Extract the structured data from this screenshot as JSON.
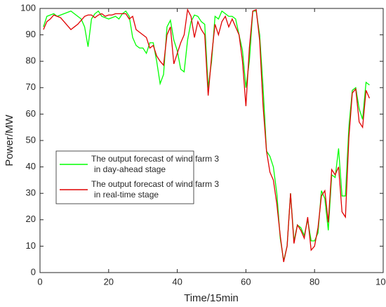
{
  "chart_data": {
    "type": "line",
    "xlabel": "Time/15min",
    "ylabel": "Power/MW",
    "x": [
      1,
      2,
      3,
      4,
      5,
      6,
      7,
      8,
      9,
      10,
      11,
      12,
      13,
      14,
      15,
      16,
      17,
      18,
      19,
      20,
      21,
      22,
      23,
      24,
      25,
      26,
      27,
      28,
      29,
      30,
      31,
      32,
      33,
      34,
      35,
      36,
      37,
      38,
      39,
      40,
      41,
      42,
      43,
      44,
      45,
      46,
      47,
      48,
      49,
      50,
      51,
      52,
      53,
      54,
      55,
      56,
      57,
      58,
      59,
      60,
      61,
      62,
      63,
      64,
      65,
      66,
      67,
      68,
      69,
      70,
      71,
      72,
      73,
      74,
      75,
      76,
      77,
      78,
      79,
      80,
      81,
      82,
      83,
      84,
      85,
      86,
      87,
      88,
      89,
      90,
      91,
      92,
      93,
      94,
      95,
      96
    ],
    "series": [
      {
        "name": "The output forecast of wind farm 3\nin day-ahead stage",
        "color": "#00ff00",
        "values": [
          93,
          97,
          97.5,
          98,
          97,
          97.5,
          98,
          98.5,
          99,
          98,
          97,
          96,
          93,
          85.5,
          96,
          98,
          99,
          97,
          96.5,
          96,
          96.5,
          97,
          96,
          98,
          99,
          97,
          89,
          86,
          85,
          85,
          83,
          87,
          87,
          80,
          71.5,
          75,
          93,
          95.5,
          88,
          84,
          77,
          76,
          88,
          95,
          97.5,
          97,
          95,
          94,
          70,
          80,
          97,
          96,
          99,
          98,
          97,
          97,
          96,
          90,
          84,
          70,
          80,
          99,
          99,
          90,
          70,
          46,
          44,
          40,
          30,
          13,
          4.5,
          10,
          30,
          12,
          18,
          17,
          14,
          20,
          12,
          12,
          15,
          31,
          28,
          16,
          37,
          36,
          47,
          29,
          29,
          55,
          69,
          70,
          62,
          58,
          72,
          71
        ]
      },
      {
        "name": "The output forecast of wind farm 3\nin real-time stage",
        "color": "#e00000",
        "values": [
          92,
          95,
          96,
          97.5,
          97,
          96.5,
          95,
          93.5,
          92,
          93,
          94,
          95.5,
          97,
          97.5,
          97.5,
          96.5,
          97.5,
          98,
          97,
          97.5,
          97.5,
          98,
          98,
          98,
          98,
          96,
          97,
          92,
          91,
          90,
          89,
          85,
          86,
          82,
          80,
          78.5,
          90,
          93,
          79,
          83,
          87,
          90,
          99.5,
          97,
          89,
          95,
          92,
          90,
          67,
          82,
          94,
          90,
          95,
          97,
          93,
          96,
          93,
          90,
          80,
          63,
          85,
          99,
          99.5,
          88,
          63,
          46,
          38,
          35,
          26,
          14,
          4,
          10,
          30,
          11,
          18,
          16,
          13,
          21,
          8.5,
          10,
          17,
          29,
          31,
          19,
          39,
          37,
          40,
          23,
          21,
          51,
          68,
          69.5,
          57,
          55,
          69,
          66
        ]
      }
    ],
    "xlim": [
      0,
      100
    ],
    "xticks": [
      0,
      20,
      40,
      60,
      80,
      100
    ],
    "ylim": [
      0,
      100
    ],
    "yticks": [
      0,
      10,
      20,
      30,
      40,
      50,
      60,
      70,
      80,
      90,
      100
    ],
    "grid": false,
    "legend_loc": "center left"
  }
}
